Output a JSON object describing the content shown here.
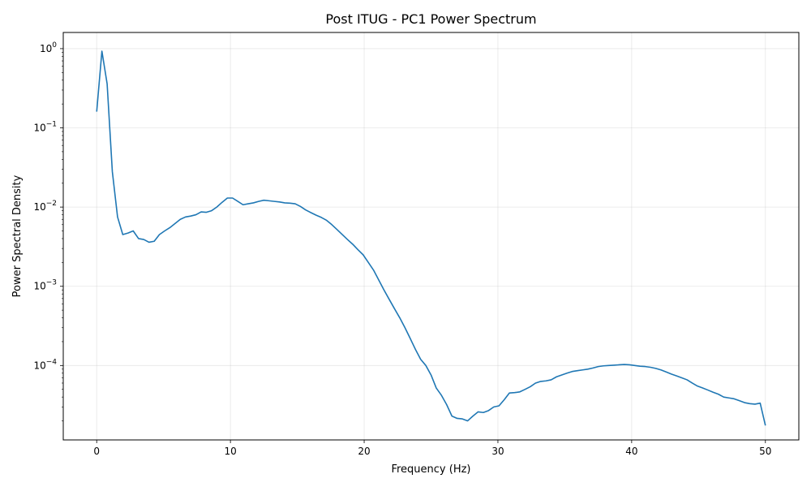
{
  "chart_data": {
    "type": "line",
    "title": "Post ITUG - PC1 Power Spectrum",
    "xlabel": "Frequency (Hz)",
    "ylabel": "Power Spectral Density",
    "xlim": [
      -2.5,
      52.5
    ],
    "ylim": [
      1.15e-05,
      1.6
    ],
    "yscale": "log",
    "grid": true,
    "x_ticks": [
      0,
      10,
      20,
      30,
      40,
      50
    ],
    "x_tick_labels": [
      "0",
      "10",
      "20",
      "30",
      "40",
      "50"
    ],
    "y_ticks": [
      0.0001,
      0.001,
      0.01,
      0.1,
      1
    ],
    "y_tick_labels": [
      {
        "base": "10",
        "exp": "−4"
      },
      {
        "base": "10",
        "exp": "−3"
      },
      {
        "base": "10",
        "exp": "−2"
      },
      {
        "base": "10",
        "exp": "−1"
      },
      {
        "base": "10",
        "exp": "0"
      }
    ],
    "series": [
      {
        "color": "#1f77b4",
        "x": [
          0,
          0.39,
          0.78,
          1.17,
          1.56,
          1.95,
          2.34,
          2.73,
          3.13,
          3.52,
          3.91,
          4.3,
          4.69,
          5.08,
          5.47,
          5.86,
          6.25,
          6.64,
          7.03,
          7.42,
          7.81,
          8.2,
          8.59,
          8.98,
          9.38,
          9.77,
          10.16,
          10.55,
          10.94,
          11.33,
          11.72,
          12.11,
          12.5,
          12.89,
          13.28,
          13.67,
          14.06,
          14.45,
          14.84,
          15.23,
          15.63,
          16.02,
          16.41,
          16.8,
          17.19,
          17.58,
          17.97,
          18.36,
          18.75,
          19.14,
          19.53,
          19.92,
          20.31,
          20.7,
          21.09,
          21.48,
          21.88,
          22.27,
          22.66,
          23.05,
          23.44,
          23.83,
          24.22,
          24.61,
          25.0,
          25.39,
          25.78,
          26.17,
          26.56,
          26.95,
          27.34,
          27.73,
          28.13,
          28.52,
          28.91,
          29.3,
          29.69,
          30.08,
          30.47,
          30.86,
          31.25,
          31.64,
          32.03,
          32.42,
          32.81,
          33.2,
          33.59,
          33.98,
          34.38,
          34.77,
          35.16,
          35.55,
          35.94,
          36.33,
          36.72,
          37.11,
          37.5,
          37.89,
          38.28,
          38.67,
          39.06,
          39.45,
          39.84,
          40.23,
          40.63,
          41.02,
          41.41,
          41.8,
          42.19,
          42.58,
          42.97,
          43.36,
          43.75,
          44.14,
          44.53,
          44.92,
          45.31,
          45.7,
          46.09,
          46.48,
          46.88,
          47.27,
          47.66,
          48.05,
          48.44,
          48.83,
          49.22,
          49.61,
          50.0
        ],
        "y": [
          0.16,
          0.93,
          0.36,
          0.028,
          0.0075,
          0.0045,
          0.0047,
          0.005,
          0.004,
          0.0039,
          0.0036,
          0.0037,
          0.0045,
          0.005,
          0.0055,
          0.0062,
          0.007,
          0.0075,
          0.0077,
          0.008,
          0.0087,
          0.0086,
          0.009,
          0.01,
          0.0115,
          0.013,
          0.013,
          0.0118,
          0.0107,
          0.011,
          0.0113,
          0.0118,
          0.0122,
          0.012,
          0.0118,
          0.0116,
          0.0113,
          0.0112,
          0.011,
          0.0102,
          0.0092,
          0.0085,
          0.0079,
          0.0074,
          0.0068,
          0.006,
          0.0052,
          0.0045,
          0.0039,
          0.0034,
          0.0029,
          0.0025,
          0.002,
          0.0016,
          0.0012,
          0.0009,
          0.00068,
          0.00052,
          0.0004,
          0.0003,
          0.00022,
          0.00016,
          0.00012,
          0.0001,
          7.6e-05,
          5.2e-05,
          4.2e-05,
          3.2e-05,
          2.3e-05,
          2.15e-05,
          2.12e-05,
          2e-05,
          2.3e-05,
          2.6e-05,
          2.55e-05,
          2.7e-05,
          3e-05,
          3.1e-05,
          3.7e-05,
          4.5e-05,
          4.55e-05,
          4.65e-05,
          5e-05,
          5.4e-05,
          6e-05,
          6.3e-05,
          6.4e-05,
          6.6e-05,
          7.2e-05,
          7.6e-05,
          8e-05,
          8.4e-05,
          8.6e-05,
          8.8e-05,
          9e-05,
          9.3e-05,
          9.7e-05,
          9.9e-05,
          0.0001,
          0.000101,
          0.000102,
          0.000103,
          0.000102,
          0.0001,
          9.8e-05,
          9.7e-05,
          9.5e-05,
          9.2e-05,
          8.8e-05,
          8.3e-05,
          7.8e-05,
          7.4e-05,
          7e-05,
          6.6e-05,
          6e-05,
          5.5e-05,
          5.2e-05,
          4.9e-05,
          4.6e-05,
          4.35e-05,
          4e-05,
          3.9e-05,
          3.8e-05,
          3.6e-05,
          3.4e-05,
          3.3e-05,
          3.25e-05,
          3.35e-05,
          1.75e-05
        ]
      }
    ]
  }
}
